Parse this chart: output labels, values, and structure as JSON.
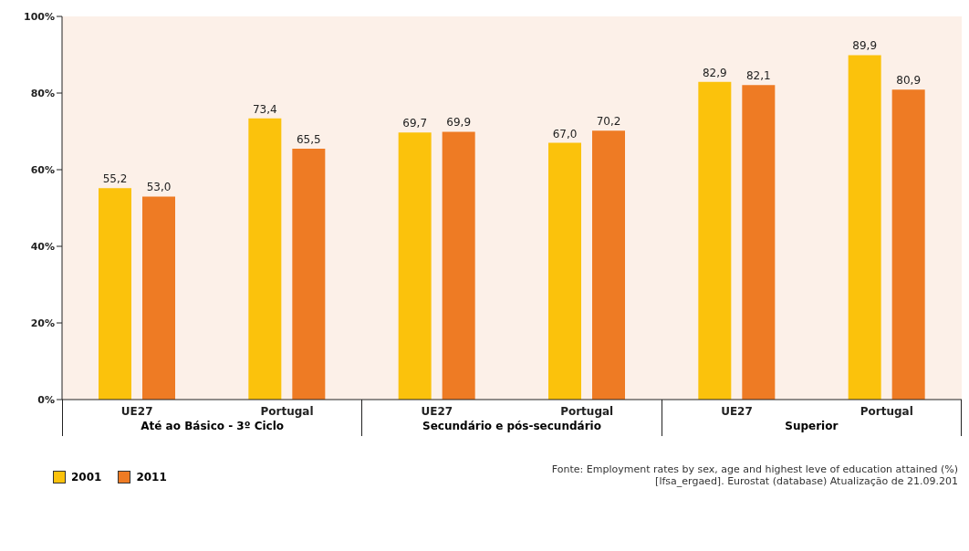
{
  "chart_data": {
    "type": "bar",
    "categories": [
      "UE27",
      "Portugal",
      "UE27",
      "Portugal",
      "UE27",
      "Portugal"
    ],
    "series": [
      {
        "name": "2001",
        "color": "#fbc20c",
        "values": [
          55.2,
          73.4,
          69.7,
          67.0,
          82.9,
          89.9
        ],
        "value_labels": [
          "55,2",
          "73,4",
          "69,7",
          "67,0",
          "82,9",
          "89,9"
        ]
      },
      {
        "name": "2011",
        "color": "#ee7b24",
        "values": [
          53.0,
          65.5,
          69.9,
          70.2,
          82.1,
          80.9
        ],
        "value_labels": [
          "53,0",
          "65,5",
          "69,9",
          "70,2",
          "82,1",
          "80,9"
        ]
      }
    ],
    "ylim": [
      0,
      100
    ],
    "yticks": [
      {
        "value": 0,
        "label": "0%"
      },
      {
        "value": 20,
        "label": "20%"
      },
      {
        "value": 40,
        "label": "40%"
      },
      {
        "value": 60,
        "label": "60%"
      },
      {
        "value": 80,
        "label": "80%"
      },
      {
        "value": 100,
        "label": "100%"
      }
    ],
    "grid": false,
    "legend": "bottom left",
    "annotations": [
      "Até ao Básico - 3º Ciclo",
      "Secundário e pós-secundário",
      "Superior",
      "Fonte: Employment rates by sex, age and highest leve of education attained (%) [lfsa_ergaed]. Eurostat (database) Atualização de 21.09.201"
    ]
  }
}
